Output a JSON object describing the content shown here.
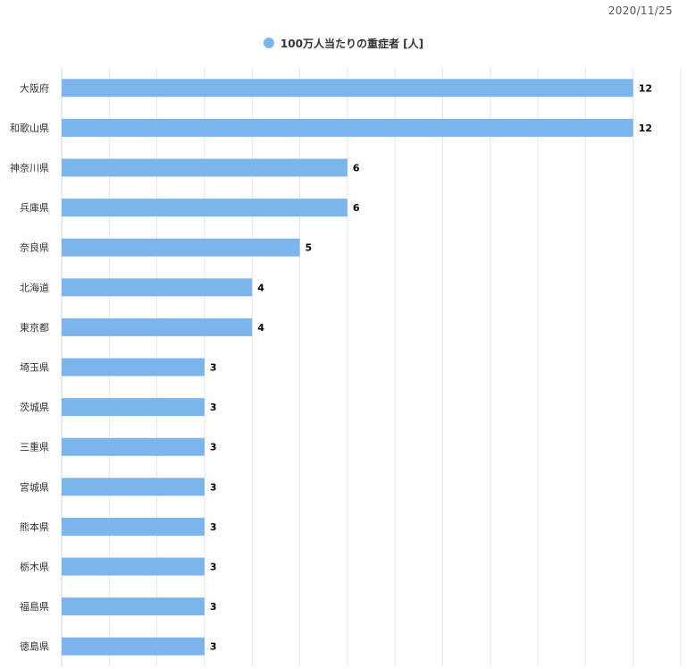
{
  "date": "2020/11/25",
  "colors": {
    "bar": "#7cb5ec",
    "grid": "#e6e6e6",
    "axis": "#ccd6eb"
  },
  "chart_data": {
    "type": "bar",
    "orientation": "horizontal",
    "categories": [
      "大阪府",
      "和歌山県",
      "神奈川県",
      "兵庫県",
      "奈良県",
      "北海道",
      "東京都",
      "埼玉県",
      "茨城県",
      "三重県",
      "宮城県",
      "熊本県",
      "栃木県",
      "福島県",
      "徳島県"
    ],
    "series": [
      {
        "name": "100万人当たりの重症者 [人]",
        "values": [
          12,
          12,
          6,
          6,
          5,
          4,
          4,
          3,
          3,
          3,
          3,
          3,
          3,
          3,
          3
        ]
      }
    ],
    "xlim": [
      0,
      13
    ],
    "grid": true,
    "legend": "top-center",
    "data_labels": true
  }
}
